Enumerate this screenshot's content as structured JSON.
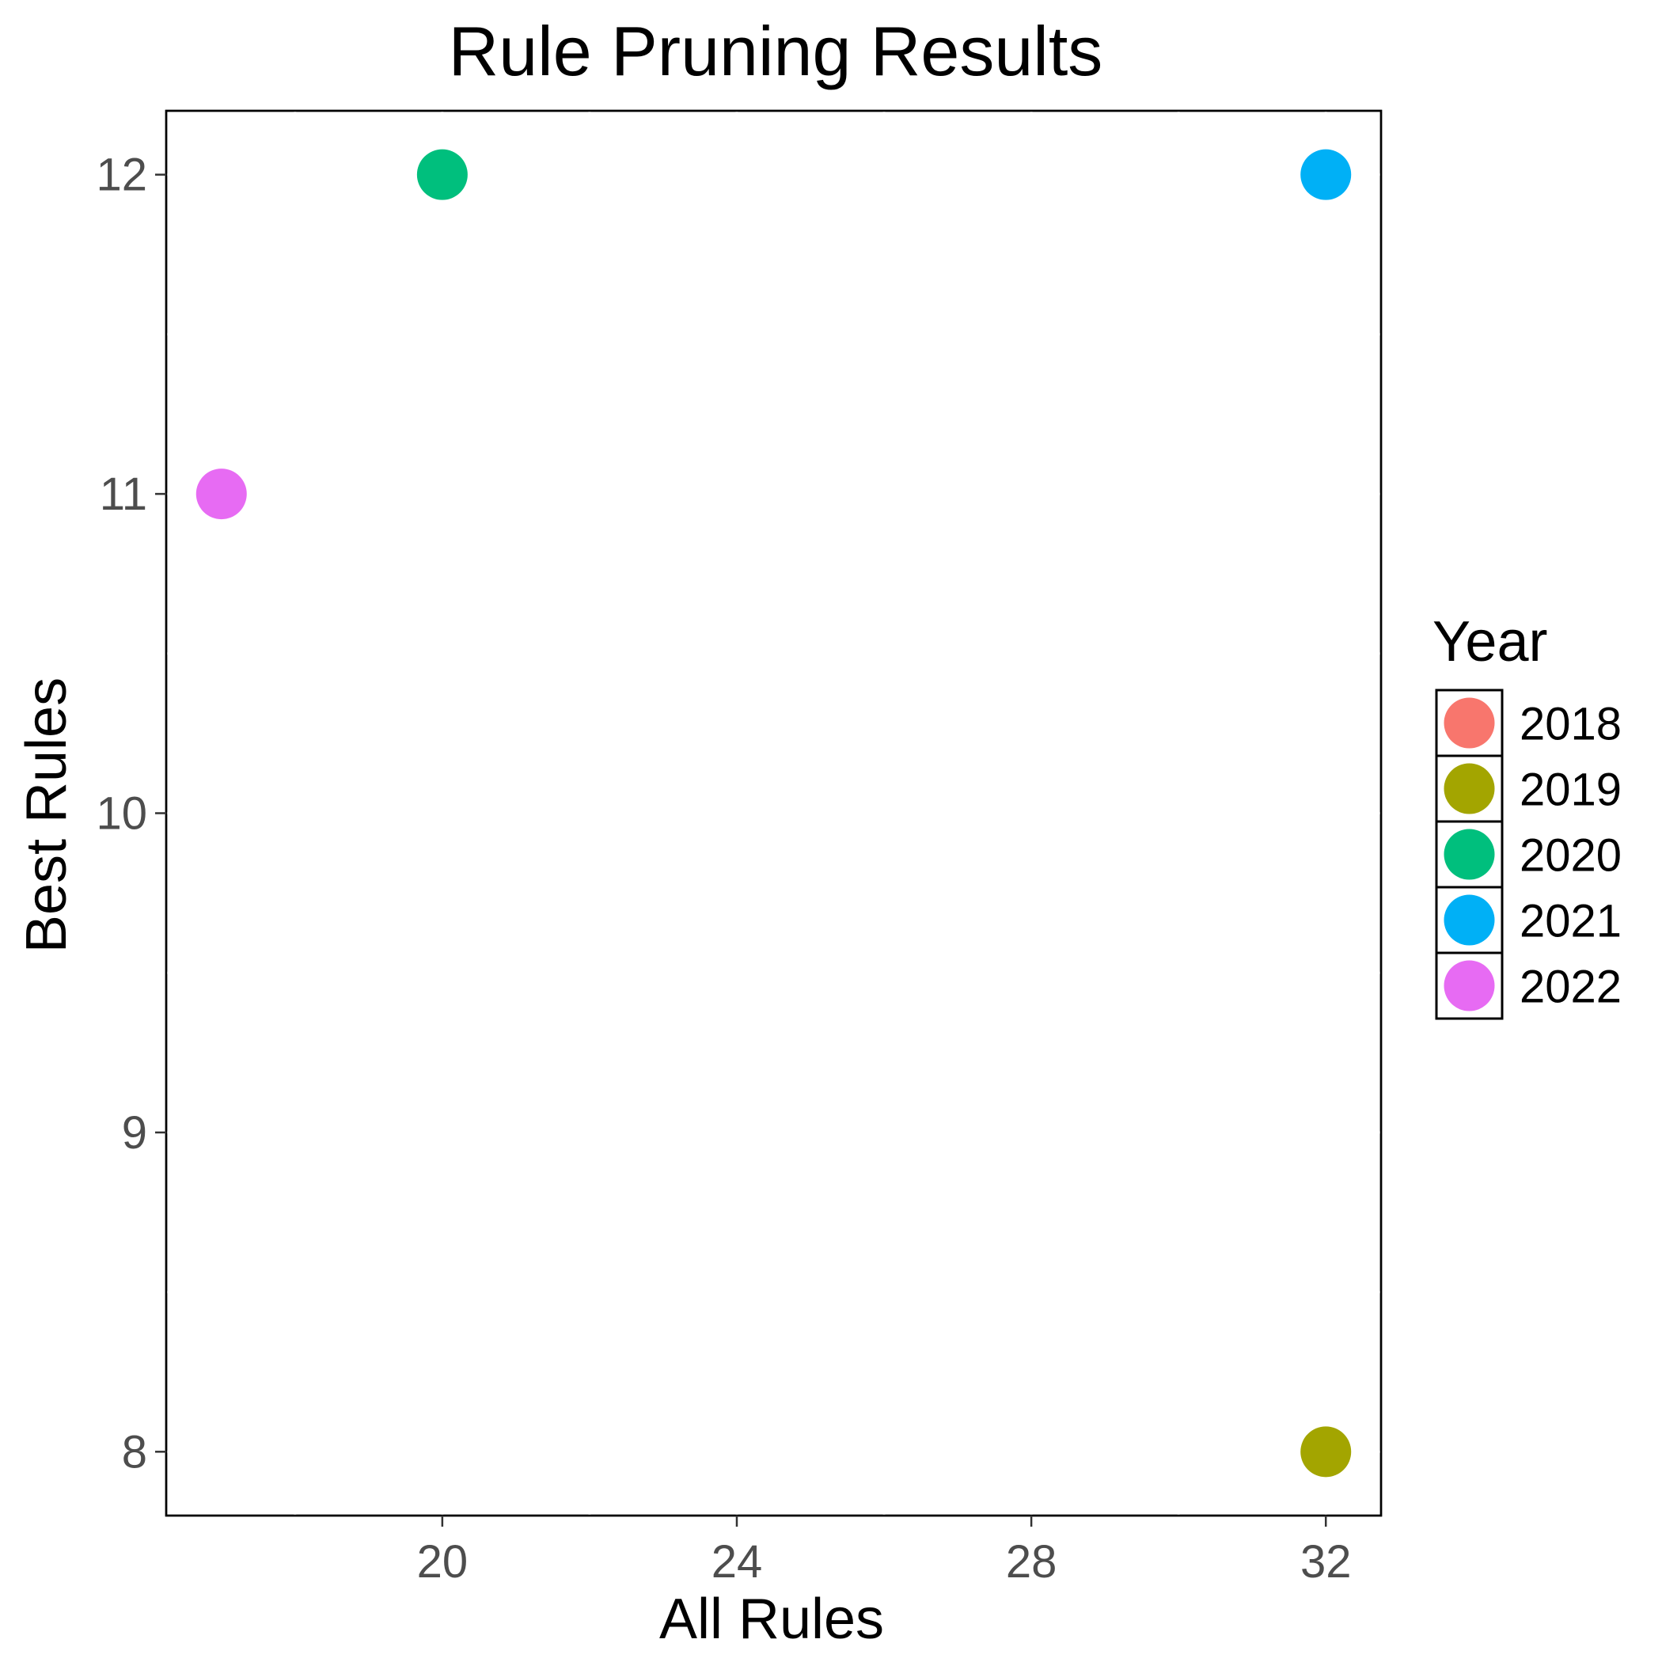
{
  "chart_data": {
    "type": "scatter",
    "title": "Rule Pruning Results",
    "xlabel": "All Rules",
    "ylabel": "Best Rules",
    "xlim": [
      16.25,
      32.75
    ],
    "ylim": [
      7.8,
      12.2
    ],
    "x_ticks": [
      20,
      24,
      28,
      32
    ],
    "y_ticks": [
      8,
      9,
      10,
      11,
      12
    ],
    "grid": false,
    "legend": {
      "title": "Year",
      "position": "right",
      "entries": [
        {
          "label": "2018",
          "color": "#F8766D"
        },
        {
          "label": "2019",
          "color": "#A3A500"
        },
        {
          "label": "2020",
          "color": "#00BF7D"
        },
        {
          "label": "2021",
          "color": "#00B0F6"
        },
        {
          "label": "2022",
          "color": "#E76BF3"
        }
      ]
    },
    "series": [
      {
        "name": "2018",
        "color": "#F8766D",
        "points": []
      },
      {
        "name": "2019",
        "color": "#A3A500",
        "points": [
          {
            "x": 32,
            "y": 8
          }
        ]
      },
      {
        "name": "2020",
        "color": "#00BF7D",
        "points": [
          {
            "x": 20,
            "y": 12
          }
        ]
      },
      {
        "name": "2021",
        "color": "#00B0F6",
        "points": [
          {
            "x": 32,
            "y": 12
          }
        ]
      },
      {
        "name": "2022",
        "color": "#E76BF3",
        "points": [
          {
            "x": 17,
            "y": 11
          }
        ]
      }
    ]
  }
}
